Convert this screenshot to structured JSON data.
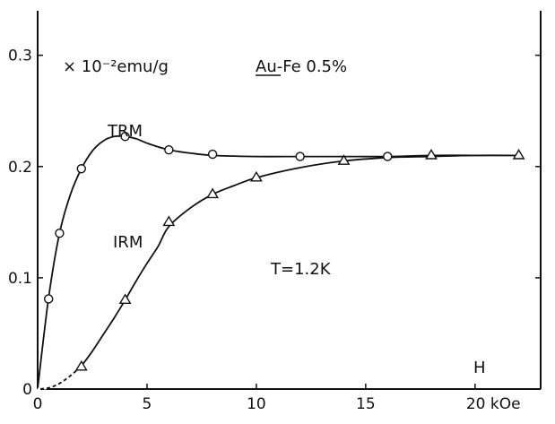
{
  "chart_data": {
    "type": "line",
    "xlim": [
      0,
      23
    ],
    "ylim": [
      0,
      0.34
    ],
    "x_ticks": [
      {
        "value": 0,
        "label": "0"
      },
      {
        "value": 5,
        "label": "5"
      },
      {
        "value": 10,
        "label": "10"
      },
      {
        "value": 15,
        "label": "15"
      },
      {
        "value": 20,
        "label": "20 kOe"
      }
    ],
    "y_ticks": [
      {
        "value": 0,
        "label": "0"
      },
      {
        "value": 0.1,
        "label": "0.1"
      },
      {
        "value": 0.2,
        "label": "0.2"
      },
      {
        "value": 0.3,
        "label": "0.3"
      }
    ],
    "ylabel": "× 10⁻²emu/g",
    "xlabel": "H",
    "grid": false,
    "annotations": {
      "sample": "Au-Fe  0.5%",
      "temperature": "T=1.2K"
    },
    "series": [
      {
        "name": "TRM",
        "marker": "circle",
        "x": [
          0.5,
          1.0,
          2.0,
          4.0,
          6.0,
          8.0,
          12.0,
          16.0
        ],
        "y": [
          0.081,
          0.14,
          0.198,
          0.227,
          0.215,
          0.211,
          0.209,
          0.209
        ],
        "curve_x": [
          0,
          0.5,
          1.0,
          1.5,
          2.0,
          2.5,
          3.0,
          3.5,
          4.0,
          4.5,
          5.0,
          6.0,
          7.0,
          8.0,
          10.0,
          12.0,
          14.0,
          16.0,
          18.0,
          20.0,
          22.0
        ],
        "curve_y": [
          0,
          0.082,
          0.14,
          0.175,
          0.198,
          0.214,
          0.223,
          0.227,
          0.227,
          0.225,
          0.221,
          0.215,
          0.212,
          0.21,
          0.209,
          0.209,
          0.209,
          0.209,
          0.21,
          0.21,
          0.21
        ]
      },
      {
        "name": "IRM",
        "marker": "triangle",
        "x": [
          2.0,
          4.0,
          6.0,
          8.0,
          10.0,
          14.0,
          18.0,
          22.0
        ],
        "y": [
          0.02,
          0.08,
          0.15,
          0.175,
          0.19,
          0.205,
          0.21,
          0.21
        ],
        "curve_x": [
          0,
          0.5,
          1.0,
          1.5,
          2.0,
          2.5,
          3.0,
          3.5,
          4.0,
          4.5,
          5.0,
          5.5,
          6.0,
          7.0,
          8.0,
          9.0,
          10.0,
          12.0,
          14.0,
          16.0,
          18.0,
          20.0,
          22.0
        ],
        "curve_y": [
          0,
          0.001,
          0.005,
          0.012,
          0.021,
          0.034,
          0.049,
          0.064,
          0.08,
          0.097,
          0.113,
          0.128,
          0.146,
          0.163,
          0.175,
          0.183,
          0.19,
          0.199,
          0.205,
          0.208,
          0.209,
          0.21,
          0.21
        ]
      }
    ]
  }
}
